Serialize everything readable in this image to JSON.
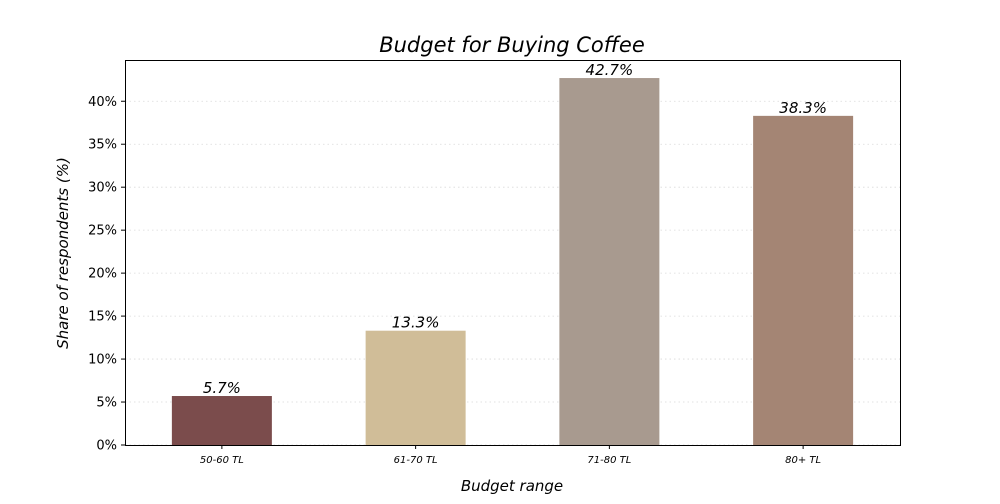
{
  "chart_data": {
    "type": "bar",
    "title": "Budget for Buying Coffee",
    "xlabel": "Budget range",
    "ylabel": "Share of respondents (%)",
    "categories": [
      "50-60 TL",
      "61-70 TL",
      "71-80 TL",
      "80+ TL"
    ],
    "values": [
      5.7,
      13.3,
      42.7,
      38.3
    ],
    "value_labels": [
      "5.7%",
      "13.3%",
      "42.7%",
      "38.3%"
    ],
    "colors": [
      "#7b4c4c",
      "#d0bd98",
      "#a89a8f",
      "#a48574"
    ],
    "ylim": [
      0,
      44.8
    ],
    "yticks": [
      0,
      5,
      10,
      15,
      20,
      25,
      30,
      35,
      40
    ],
    "ytick_labels": [
      "0%",
      "5%",
      "10%",
      "15%",
      "20%",
      "25%",
      "30%",
      "35%",
      "40%"
    ],
    "grid": true
  }
}
